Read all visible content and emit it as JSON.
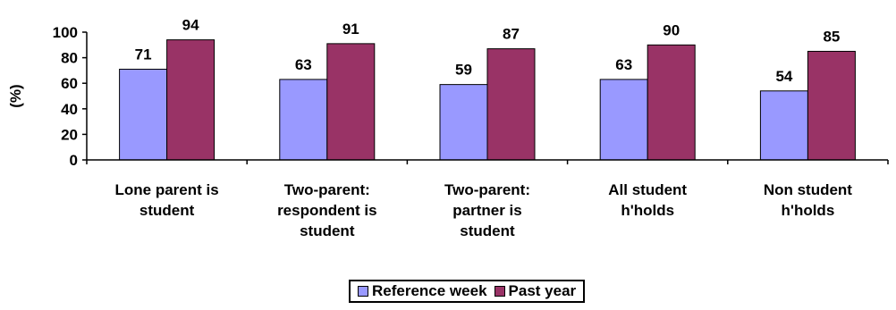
{
  "chart_data": {
    "type": "bar",
    "ylabel": "(%)",
    "ylim": [
      0,
      100
    ],
    "yticks": [
      0,
      20,
      40,
      60,
      80,
      100
    ],
    "grid": false,
    "legend_position": "bottom",
    "categories": [
      [
        "Lone parent is",
        "student"
      ],
      [
        "Two-parent:",
        "respondent is",
        "student"
      ],
      [
        "Two-parent:",
        "partner is",
        "student"
      ],
      [
        "All student",
        "h'holds"
      ],
      [
        "Non student",
        "h'holds"
      ]
    ],
    "series": [
      {
        "name": "Reference week",
        "color": "#9999ff",
        "values": [
          71,
          63,
          59,
          63,
          54
        ]
      },
      {
        "name": "Past year",
        "color": "#993366",
        "values": [
          94,
          91,
          87,
          90,
          85
        ]
      }
    ]
  }
}
